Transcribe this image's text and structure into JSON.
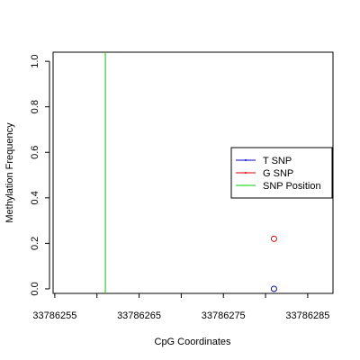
{
  "chart_data": {
    "type": "scatter",
    "title": "",
    "xlabel": "CpG Coordinates",
    "ylabel": "Methylation Frequency",
    "xlim": [
      33786254.8,
      33786288.0
    ],
    "ylim": [
      -0.02,
      1.04
    ],
    "x_ticks": [
      33786255,
      33786260,
      33786265,
      33786270,
      33786275,
      33786280,
      33786285
    ],
    "x_tick_labels": [
      "33786255",
      "",
      "33786265",
      "",
      "33786275",
      "",
      "33786285"
    ],
    "y_ticks": [
      0.0,
      0.2,
      0.4,
      0.6,
      0.8,
      1.0
    ],
    "y_tick_labels": [
      "0.0",
      "0.2",
      "0.4",
      "0.6",
      "0.8",
      "1.0"
    ],
    "grid": false,
    "legend_position": "right",
    "series": [
      {
        "name": "T SNP",
        "color": "#0000cc",
        "marker": "circle",
        "points": [
          {
            "x": 33786281,
            "y": 0.0
          }
        ]
      },
      {
        "name": "G SNP",
        "color": "#dd0000",
        "marker": "circle",
        "points": [
          {
            "x": 33786281,
            "y": 0.22
          }
        ]
      }
    ],
    "vlines": [
      {
        "name": "SNP Position",
        "color": "#00cc00",
        "x": 33786261
      }
    ]
  }
}
